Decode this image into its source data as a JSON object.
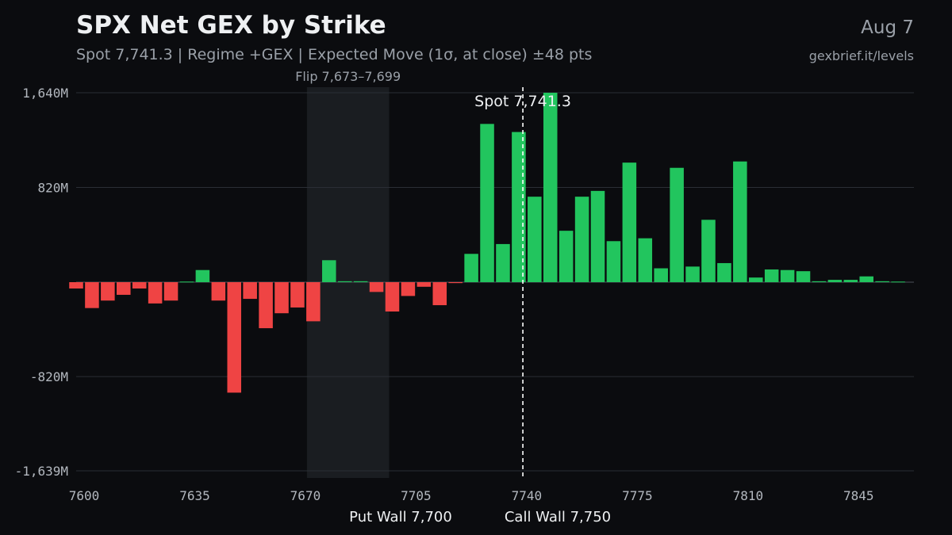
{
  "header": {
    "title": "SPX Net GEX by Strike",
    "subtitle": "Spot 7,741.3 | Regime +GEX | Expected Move (1σ, at close) ±48 pts",
    "date": "Aug 7",
    "site": "gexbrief.it/levels"
  },
  "colors": {
    "positive": "#22c55e",
    "negative": "#ef4444",
    "background": "#0b0c0f",
    "grid": "#2a2e35",
    "flip_zone": "#1a1d21"
  },
  "chart_data": {
    "type": "bar",
    "title": "SPX Net GEX by Strike",
    "xlabel": "",
    "ylabel": "",
    "unit": "M",
    "xlim": [
      7600,
      7865
    ],
    "ylim": [
      -1639,
      1640
    ],
    "yticks": [
      1640,
      820,
      0,
      -820,
      -1639
    ],
    "ytick_labels": [
      "1,640M",
      "820M",
      "",
      "-820M",
      "-1,639M"
    ],
    "xticks": [
      7600,
      7635,
      7670,
      7705,
      7740,
      7775,
      7810,
      7845
    ],
    "xtick_labels": [
      "7600",
      "7635",
      "7670",
      "7705",
      "7740",
      "7775",
      "7810",
      "7845"
    ],
    "grid": true,
    "bar_width": 4.4,
    "strikes": [
      7600,
      7605,
      7610,
      7615,
      7620,
      7625,
      7630,
      7635,
      7640,
      7645,
      7650,
      7655,
      7660,
      7665,
      7670,
      7675,
      7680,
      7685,
      7690,
      7695,
      7700,
      7705,
      7710,
      7715,
      7720,
      7725,
      7730,
      7735,
      7740,
      7745,
      7750,
      7755,
      7760,
      7765,
      7770,
      7775,
      7780,
      7785,
      7790,
      7795,
      7800,
      7805,
      7810,
      7815,
      7820,
      7825,
      7830,
      7835,
      7840,
      7845,
      7850,
      7855,
      7860
    ],
    "values": [
      -55,
      -225,
      -160,
      -110,
      -55,
      -185,
      -160,
      5,
      105,
      -160,
      -960,
      -145,
      -400,
      -270,
      -220,
      -340,
      190,
      8,
      8,
      -85,
      -255,
      -120,
      -40,
      -200,
      -8,
      245,
      1370,
      330,
      1300,
      740,
      1640,
      445,
      740,
      790,
      355,
      1035,
      380,
      120,
      990,
      135,
      540,
      165,
      1045,
      40,
      110,
      105,
      95,
      8,
      20,
      20,
      50,
      8,
      5
    ],
    "flip": {
      "from": 7673,
      "to": 7699,
      "label": "Flip 7,673–7,699"
    },
    "spot": {
      "value": 7741.3,
      "label": "Spot 7,741.3"
    },
    "put_wall": {
      "value": 7700,
      "label": "Put Wall 7,700"
    },
    "call_wall": {
      "value": 7750,
      "label": "Call Wall 7,750"
    }
  }
}
